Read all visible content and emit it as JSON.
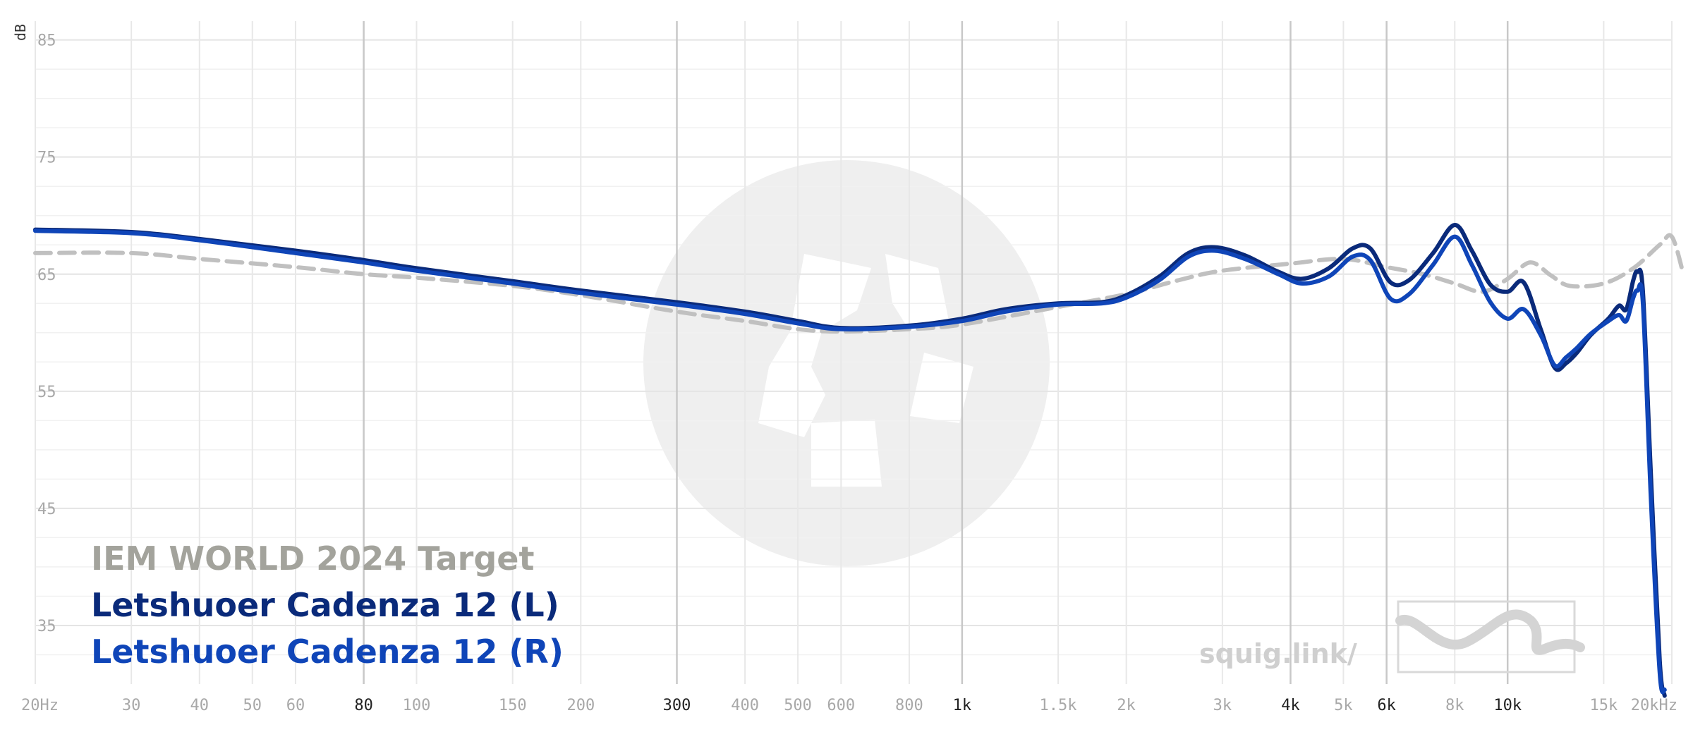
{
  "chart_data": {
    "type": "line",
    "ylabel": "dB",
    "ylim": [
      30,
      86
    ],
    "xlim": [
      20,
      20000
    ],
    "x_scale": "log",
    "grid": true,
    "y_ticks": [
      {
        "value": 85,
        "label": "85"
      },
      {
        "value": 75,
        "label": "75"
      },
      {
        "value": 65,
        "label": "65"
      },
      {
        "value": 55,
        "label": "55"
      },
      {
        "value": 45,
        "label": "45"
      },
      {
        "value": 35,
        "label": "35"
      }
    ],
    "x_ticks": [
      {
        "value": 20,
        "label": "20Hz",
        "major": false
      },
      {
        "value": 30,
        "label": "30",
        "major": false
      },
      {
        "value": 40,
        "label": "40",
        "major": false
      },
      {
        "value": 50,
        "label": "50",
        "major": false
      },
      {
        "value": 60,
        "label": "60",
        "major": false
      },
      {
        "value": 80,
        "label": "80",
        "major": true
      },
      {
        "value": 100,
        "label": "100",
        "major": false
      },
      {
        "value": 150,
        "label": "150",
        "major": false
      },
      {
        "value": 200,
        "label": "200",
        "major": false
      },
      {
        "value": 300,
        "label": "300",
        "major": true
      },
      {
        "value": 400,
        "label": "400",
        "major": false
      },
      {
        "value": 500,
        "label": "500",
        "major": false
      },
      {
        "value": 600,
        "label": "600",
        "major": false
      },
      {
        "value": 800,
        "label": "800",
        "major": false
      },
      {
        "value": 1000,
        "label": "1k",
        "major": true
      },
      {
        "value": 1500,
        "label": "1.5k",
        "major": false
      },
      {
        "value": 2000,
        "label": "2k",
        "major": false
      },
      {
        "value": 3000,
        "label": "3k",
        "major": false
      },
      {
        "value": 4000,
        "label": "4k",
        "major": true
      },
      {
        "value": 5000,
        "label": "5k",
        "major": false
      },
      {
        "value": 6000,
        "label": "6k",
        "major": true
      },
      {
        "value": 8000,
        "label": "8k",
        "major": false
      },
      {
        "value": 10000,
        "label": "10k",
        "major": true
      },
      {
        "value": 15000,
        "label": "15k",
        "major": false
      },
      {
        "value": 20000,
        "label": "20kHz",
        "major": false
      }
    ],
    "legend_position": "bottom-left",
    "series": [
      {
        "name": "IEM WORLD 2024 Target",
        "color": "#a3a39c",
        "line_color": "#c0c0c0",
        "dashed": true,
        "points": [
          [
            20,
            66.8
          ],
          [
            30,
            66.8
          ],
          [
            40,
            66.3
          ],
          [
            60,
            65.6
          ],
          [
            80,
            65.0
          ],
          [
            100,
            64.7
          ],
          [
            150,
            64.0
          ],
          [
            200,
            63.2
          ],
          [
            300,
            61.8
          ],
          [
            400,
            61.0
          ],
          [
            500,
            60.3
          ],
          [
            600,
            60.1
          ],
          [
            800,
            60.3
          ],
          [
            1000,
            60.7
          ],
          [
            1500,
            62.2
          ],
          [
            2000,
            63.3
          ],
          [
            2500,
            64.5
          ],
          [
            3000,
            65.3
          ],
          [
            4000,
            65.9
          ],
          [
            5000,
            66.3
          ],
          [
            6000,
            65.6
          ],
          [
            7000,
            65.0
          ],
          [
            8000,
            64.2
          ],
          [
            9000,
            63.5
          ],
          [
            10000,
            64.6
          ],
          [
            11000,
            66.0
          ],
          [
            12000,
            64.9
          ],
          [
            13000,
            64.0
          ],
          [
            15000,
            64.2
          ],
          [
            17000,
            65.5
          ],
          [
            19000,
            67.5
          ],
          [
            20000,
            68.2
          ],
          [
            21000,
            65.0
          ]
        ]
      },
      {
        "name": "Letshuoer Cadenza 12 (L)",
        "color": "#0a2a7a",
        "line_color": "#0a2a7a",
        "dashed": false,
        "points": [
          [
            20,
            68.8
          ],
          [
            30,
            68.6
          ],
          [
            40,
            68.0
          ],
          [
            60,
            67.0
          ],
          [
            80,
            66.2
          ],
          [
            100,
            65.5
          ],
          [
            150,
            64.4
          ],
          [
            200,
            63.6
          ],
          [
            300,
            62.6
          ],
          [
            400,
            61.8
          ],
          [
            500,
            61.0
          ],
          [
            600,
            60.4
          ],
          [
            800,
            60.6
          ],
          [
            1000,
            61.2
          ],
          [
            1200,
            62.0
          ],
          [
            1500,
            62.5
          ],
          [
            1800,
            62.6
          ],
          [
            2000,
            63.2
          ],
          [
            2300,
            64.8
          ],
          [
            2600,
            66.8
          ],
          [
            2900,
            67.3
          ],
          [
            3300,
            66.6
          ],
          [
            3800,
            65.2
          ],
          [
            4200,
            64.6
          ],
          [
            4700,
            65.5
          ],
          [
            5200,
            67.2
          ],
          [
            5600,
            67.2
          ],
          [
            6100,
            64.3
          ],
          [
            6600,
            64.5
          ],
          [
            7300,
            66.8
          ],
          [
            8000,
            69.2
          ],
          [
            8600,
            67.0
          ],
          [
            9300,
            64.1
          ],
          [
            10000,
            63.5
          ],
          [
            10700,
            64.3
          ],
          [
            11500,
            60.3
          ],
          [
            12200,
            57.0
          ],
          [
            12800,
            57.4
          ],
          [
            13400,
            58.3
          ],
          [
            14200,
            59.8
          ],
          [
            15300,
            61.2
          ],
          [
            16000,
            62.3
          ],
          [
            16500,
            62.0
          ],
          [
            17000,
            64.5
          ],
          [
            17300,
            65.2
          ],
          [
            17700,
            63.5
          ],
          [
            18300,
            48.0
          ],
          [
            19000,
            32.0
          ],
          [
            19400,
            29.0
          ]
        ]
      },
      {
        "name": "Letshuoer Cadenza 12 (R)",
        "color": "#0f45b8",
        "line_color": "#0f45b8",
        "dashed": false,
        "points": [
          [
            20,
            68.7
          ],
          [
            30,
            68.5
          ],
          [
            40,
            67.9
          ],
          [
            60,
            66.8
          ],
          [
            80,
            66.0
          ],
          [
            100,
            65.3
          ],
          [
            150,
            64.2
          ],
          [
            200,
            63.4
          ],
          [
            300,
            62.4
          ],
          [
            400,
            61.6
          ],
          [
            500,
            60.8
          ],
          [
            600,
            60.3
          ],
          [
            800,
            60.5
          ],
          [
            1000,
            61.0
          ],
          [
            1200,
            61.8
          ],
          [
            1500,
            62.4
          ],
          [
            1800,
            62.5
          ],
          [
            2000,
            63.0
          ],
          [
            2300,
            64.5
          ],
          [
            2600,
            66.5
          ],
          [
            2900,
            67.0
          ],
          [
            3300,
            66.3
          ],
          [
            3800,
            65.0
          ],
          [
            4200,
            64.2
          ],
          [
            4700,
            64.8
          ],
          [
            5200,
            66.5
          ],
          [
            5600,
            66.2
          ],
          [
            6100,
            62.9
          ],
          [
            6600,
            63.3
          ],
          [
            7300,
            65.8
          ],
          [
            8000,
            68.2
          ],
          [
            8600,
            65.8
          ],
          [
            9300,
            62.6
          ],
          [
            10000,
            61.2
          ],
          [
            10700,
            62.0
          ],
          [
            11500,
            59.8
          ],
          [
            12200,
            57.2
          ],
          [
            12800,
            57.9
          ],
          [
            13400,
            58.7
          ],
          [
            14200,
            59.9
          ],
          [
            15300,
            61.0
          ],
          [
            16000,
            61.5
          ],
          [
            16500,
            61.0
          ],
          [
            17000,
            63.0
          ],
          [
            17300,
            63.6
          ],
          [
            17700,
            62.5
          ],
          [
            18300,
            46.0
          ],
          [
            19000,
            31.0
          ],
          [
            19400,
            29.5
          ]
        ]
      }
    ],
    "watermark": {
      "text": "squig.link/"
    }
  }
}
